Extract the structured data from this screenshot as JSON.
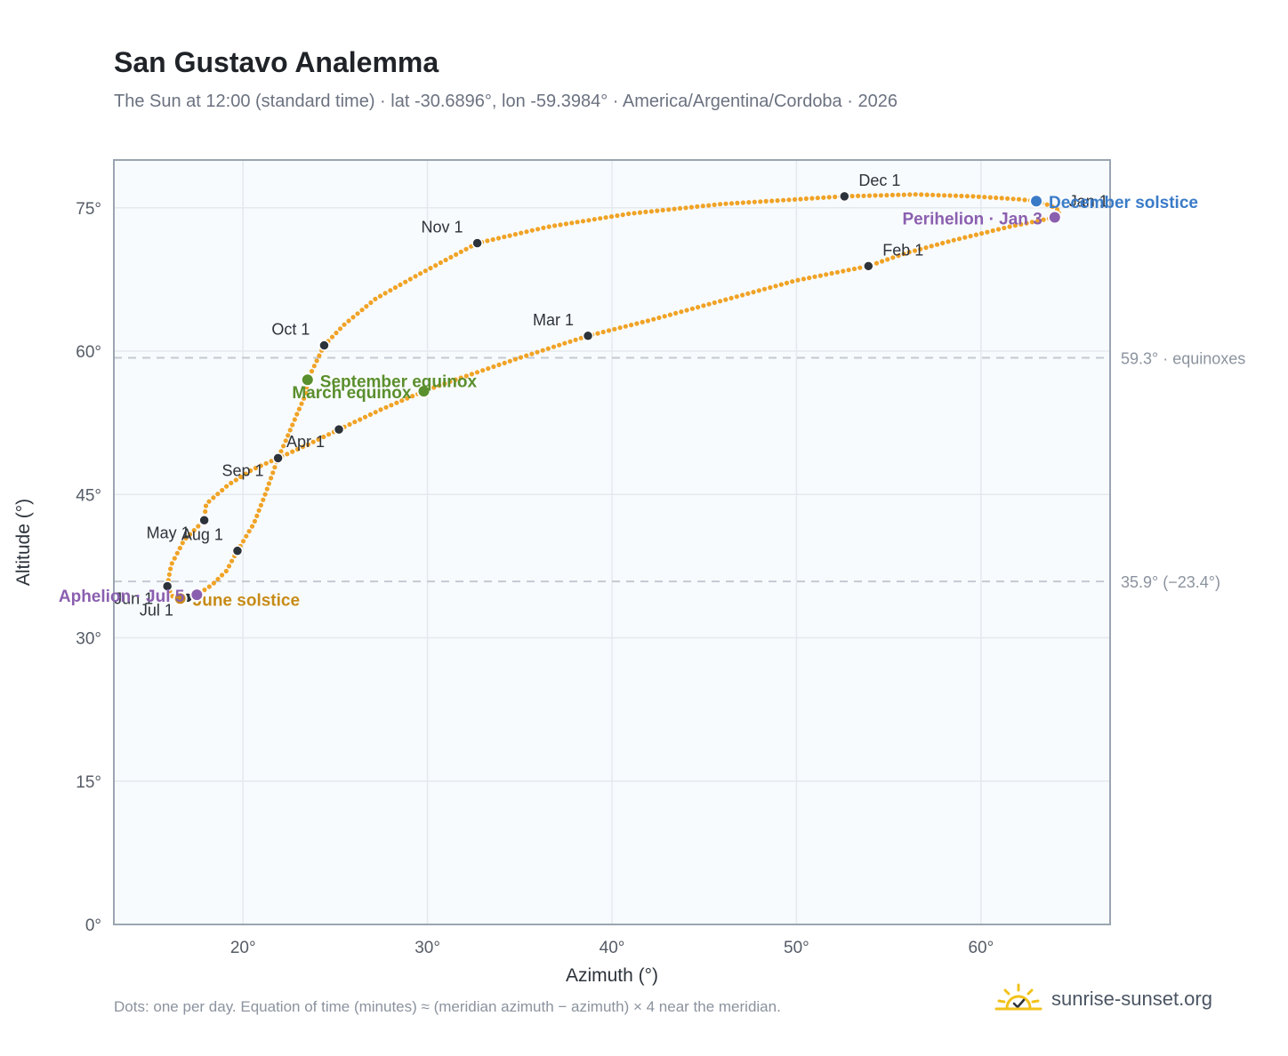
{
  "title": "San Gustavo Analemma",
  "subtitle": "The Sun at 12:00 (standard time) · lat -30.6896°, lon -59.3984° · America/Argentina/Cordoba · 2026",
  "footnote": "Dots: one per day. Equation of time (minutes) ≈ (meridian azimuth − azimuth) × 4 near the meridian.",
  "brand": {
    "text": "sunrise-sunset.org",
    "icon": "sun-logo-icon"
  },
  "colors": {
    "path": "#f0a326",
    "month": "#2d333b",
    "equinox": "#5a8f2d",
    "december": "#3a7bc8",
    "june": "#c78b17",
    "apsis": "#8b5fb0",
    "refline": "#c3cad3",
    "plotbg": "#f8fbfd",
    "grid": "#e4e9ee",
    "frame": "#9aa5b1"
  },
  "chart_data": {
    "type": "scatter",
    "xlabel": "Azimuth (°)",
    "ylabel": "Altitude (°)",
    "xlim": [
      13,
      67
    ],
    "ylim": [
      0,
      80
    ],
    "xticks": [
      20,
      30,
      40,
      50,
      60
    ],
    "xtick_labels": [
      "20°",
      "30°",
      "40°",
      "50°",
      "60°"
    ],
    "yticks": [
      0,
      15,
      30,
      45,
      60,
      75
    ],
    "ytick_labels": [
      "0°",
      "15°",
      "30°",
      "45°",
      "60°",
      "75°"
    ],
    "grid": true,
    "path_points": [
      [
        64.0,
        74.0
      ],
      [
        61.5,
        73.0
      ],
      [
        58.5,
        71.6
      ],
      [
        56.0,
        70.3
      ],
      [
        53.9,
        68.9
      ],
      [
        50.0,
        67.4
      ],
      [
        46.0,
        65.3
      ],
      [
        42.0,
        63.2
      ],
      [
        38.7,
        61.6
      ],
      [
        35.0,
        59.3
      ],
      [
        31.5,
        57.0
      ],
      [
        29.8,
        55.8
      ],
      [
        27.5,
        53.9
      ],
      [
        25.2,
        51.8
      ],
      [
        23.5,
        50.2
      ],
      [
        21.9,
        48.8
      ],
      [
        20.5,
        47.6
      ],
      [
        19.2,
        46.0
      ],
      [
        18.0,
        44.0
      ],
      [
        17.9,
        42.3
      ],
      [
        16.8,
        40.2
      ],
      [
        16.1,
        37.6
      ],
      [
        15.9,
        35.4
      ],
      [
        16.2,
        34.3
      ],
      [
        16.6,
        34.1
      ],
      [
        17.0,
        34.2
      ],
      [
        17.5,
        34.5
      ],
      [
        18.3,
        35.5
      ],
      [
        19.1,
        37.0
      ],
      [
        19.7,
        39.1
      ],
      [
        20.6,
        42.0
      ],
      [
        21.2,
        45.0
      ],
      [
        21.9,
        48.8
      ],
      [
        22.4,
        51.0
      ],
      [
        22.9,
        53.3
      ],
      [
        23.4,
        55.5
      ],
      [
        23.5,
        57.0
      ],
      [
        24.0,
        59.0
      ],
      [
        24.4,
        60.6
      ],
      [
        25.5,
        62.8
      ],
      [
        27.2,
        65.5
      ],
      [
        29.5,
        68.0
      ],
      [
        32.7,
        71.3
      ],
      [
        36.5,
        73.0
      ],
      [
        41.0,
        74.4
      ],
      [
        46.0,
        75.4
      ],
      [
        52.6,
        76.2
      ],
      [
        56.5,
        76.4
      ],
      [
        59.5,
        76.2
      ],
      [
        62.0,
        75.9
      ],
      [
        63.0,
        75.7
      ],
      [
        63.8,
        75.2
      ],
      [
        64.3,
        74.6
      ],
      [
        64.0,
        74.0
      ]
    ],
    "month_markers": [
      {
        "label": "Jan 1",
        "x": 64.0,
        "y": 74.0,
        "label_pos": "upper-right"
      },
      {
        "label": "Feb 1",
        "x": 53.9,
        "y": 68.9,
        "label_pos": "upper-right"
      },
      {
        "label": "Mar 1",
        "x": 38.7,
        "y": 61.6,
        "label_pos": "upper-left"
      },
      {
        "label": "Apr 1",
        "x": 25.2,
        "y": 51.8,
        "label_pos": "lower-left"
      },
      {
        "label": "May 1",
        "x": 17.9,
        "y": 42.3,
        "label_pos": "lower-left"
      },
      {
        "label": "Jun 1",
        "x": 15.9,
        "y": 35.4,
        "label_pos": "lower-left"
      },
      {
        "label": "Jul 1",
        "x": 17.0,
        "y": 34.2,
        "label_pos": "lower-left"
      },
      {
        "label": "Aug 1",
        "x": 19.7,
        "y": 39.1,
        "label_pos": "upper-left"
      },
      {
        "label": "Sep 1",
        "x": 21.9,
        "y": 48.8,
        "label_pos": "lower-left"
      },
      {
        "label": "Oct 1",
        "x": 24.4,
        "y": 60.6,
        "label_pos": "upper-left"
      },
      {
        "label": "Nov 1",
        "x": 32.7,
        "y": 71.3,
        "label_pos": "upper-left"
      },
      {
        "label": "Dec 1",
        "x": 52.6,
        "y": 76.2,
        "label_pos": "upper-right"
      }
    ],
    "events": [
      {
        "label": "March equinox",
        "x": 29.8,
        "y": 55.8,
        "color": "equinox",
        "label_pos": "left"
      },
      {
        "label": "September equinox",
        "x": 23.5,
        "y": 57.0,
        "color": "equinox",
        "label_pos": "right"
      },
      {
        "label": "December solstice",
        "x": 63.0,
        "y": 75.7,
        "color": "december",
        "label_pos": "right"
      },
      {
        "label": "June solstice",
        "x": 16.6,
        "y": 34.1,
        "color": "june",
        "label_pos": "right"
      },
      {
        "label": "Perihelion · Jan 3",
        "x": 64.0,
        "y": 74.0,
        "color": "apsis",
        "label_pos": "left"
      },
      {
        "label": "Aphelion · Jul 5",
        "x": 17.5,
        "y": 34.5,
        "color": "apsis",
        "label_pos": "left"
      }
    ],
    "reference_lines": [
      {
        "y": 59.3,
        "label": "59.3° · equinoxes"
      },
      {
        "y": 35.9,
        "label": "35.9° (−23.4°)"
      }
    ]
  }
}
